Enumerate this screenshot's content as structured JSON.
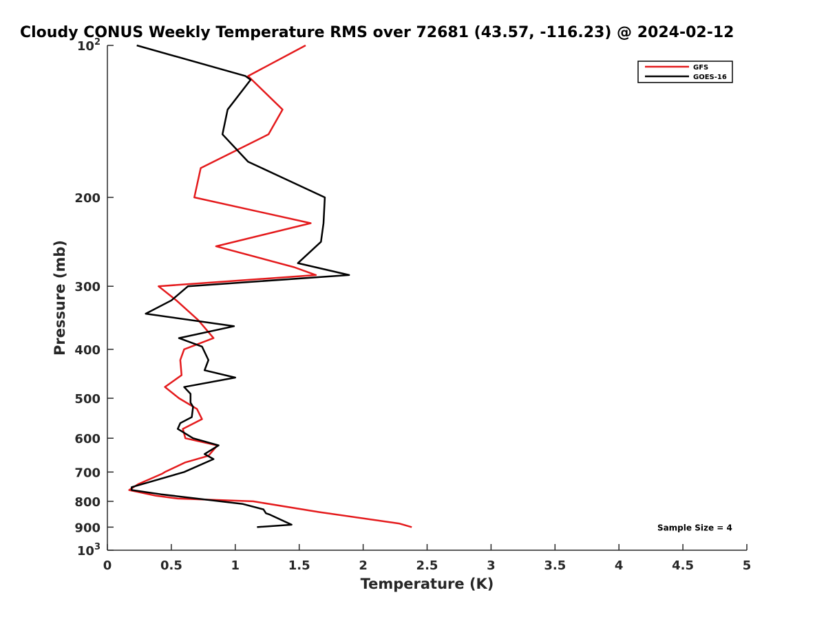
{
  "chart_data": {
    "type": "line",
    "title": "Cloudy CONUS Weekly Temperature RMS over 72681 (43.57, -116.23) @ 2024-02-12",
    "xlabel": "Temperature (K)",
    "ylabel": "Pressure (mb)",
    "xlim": [
      0,
      5
    ],
    "ylim": [
      100,
      1000
    ],
    "y_scale": "log",
    "y_reversed": true,
    "grid": false,
    "legend_position": "top-right",
    "xticks": [
      0,
      0.5,
      1,
      1.5,
      2,
      2.5,
      3,
      3.5,
      4,
      4.5,
      5
    ],
    "xtick_labels": [
      "0",
      "0.5",
      "1",
      "1.5",
      "2",
      "2.5",
      "3",
      "3.5",
      "4",
      "4.5",
      "5"
    ],
    "yticks": [
      {
        "value": 100,
        "base": "10",
        "exp": "2"
      },
      {
        "value": 200,
        "label": "200"
      },
      {
        "value": 300,
        "label": "300"
      },
      {
        "value": 400,
        "label": "400"
      },
      {
        "value": 500,
        "label": "500"
      },
      {
        "value": 600,
        "label": "600"
      },
      {
        "value": 700,
        "label": "700"
      },
      {
        "value": 800,
        "label": "800"
      },
      {
        "value": 900,
        "label": "900"
      },
      {
        "value": 1000,
        "base": "10",
        "exp": "3"
      }
    ],
    "series": [
      {
        "name": "GFS",
        "color": "#e41a1c",
        "points": [
          [
            1.55,
            100
          ],
          [
            1.1,
            115
          ],
          [
            1.37,
            134
          ],
          [
            1.26,
            150
          ],
          [
            0.73,
            175
          ],
          [
            0.68,
            200
          ],
          [
            1.59,
            225
          ],
          [
            0.85,
            250
          ],
          [
            1.46,
            275
          ],
          [
            1.63,
            285
          ],
          [
            0.4,
            300
          ],
          [
            0.54,
            320
          ],
          [
            0.71,
            350
          ],
          [
            0.83,
            380
          ],
          [
            0.6,
            400
          ],
          [
            0.57,
            420
          ],
          [
            0.58,
            450
          ],
          [
            0.45,
            475
          ],
          [
            0.56,
            500
          ],
          [
            0.7,
            525
          ],
          [
            0.74,
            550
          ],
          [
            0.59,
            575
          ],
          [
            0.61,
            600
          ],
          [
            0.86,
            620
          ],
          [
            0.79,
            650
          ],
          [
            0.61,
            670
          ],
          [
            0.45,
            700
          ],
          [
            0.43,
            705
          ],
          [
            0.24,
            740
          ],
          [
            0.17,
            760
          ],
          [
            0.38,
            780
          ],
          [
            0.55,
            790
          ],
          [
            1.14,
            800
          ],
          [
            1.65,
            840
          ],
          [
            2.28,
            885
          ],
          [
            2.38,
            900
          ]
        ]
      },
      {
        "name": "GOES-16",
        "color": "#000000",
        "points": [
          [
            0.23,
            100
          ],
          [
            1.08,
            115
          ],
          [
            1.12,
            117
          ],
          [
            0.94,
            134
          ],
          [
            0.9,
            150
          ],
          [
            1.1,
            170
          ],
          [
            1.7,
            200
          ],
          [
            1.69,
            225
          ],
          [
            1.67,
            245
          ],
          [
            1.49,
            270
          ],
          [
            1.89,
            285
          ],
          [
            0.63,
            300
          ],
          [
            0.5,
            320
          ],
          [
            0.3,
            340
          ],
          [
            0.99,
            360
          ],
          [
            0.56,
            380
          ],
          [
            0.74,
            395
          ],
          [
            0.79,
            420
          ],
          [
            0.76,
            440
          ],
          [
            1.0,
            455
          ],
          [
            0.6,
            475
          ],
          [
            0.65,
            490
          ],
          [
            0.65,
            510
          ],
          [
            0.67,
            520
          ],
          [
            0.66,
            545
          ],
          [
            0.57,
            560
          ],
          [
            0.55,
            575
          ],
          [
            0.67,
            600
          ],
          [
            0.87,
            620
          ],
          [
            0.76,
            645
          ],
          [
            0.83,
            660
          ],
          [
            0.6,
            700
          ],
          [
            0.19,
            750
          ],
          [
            0.19,
            760
          ],
          [
            0.42,
            775
          ],
          [
            1.06,
            810
          ],
          [
            1.22,
            830
          ],
          [
            1.24,
            845
          ],
          [
            1.27,
            850
          ],
          [
            1.44,
            890
          ],
          [
            1.17,
            900
          ]
        ]
      }
    ],
    "annotations": [
      {
        "text": "Sample Size = 4",
        "x": 4.3,
        "y": 900
      }
    ]
  }
}
